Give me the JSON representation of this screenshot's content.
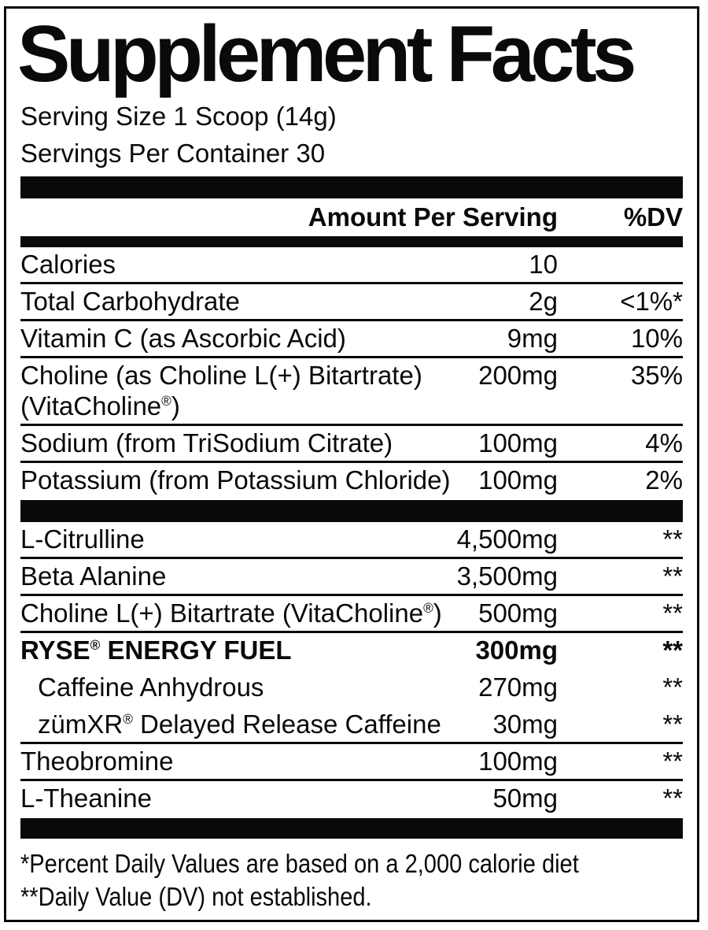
{
  "colors": {
    "ink": "#0a0a0a",
    "background": "#ffffff"
  },
  "label": {
    "title": "Supplement Facts",
    "serving_size": "Serving Size 1 Scoop (14g)",
    "servings_per_container": "Servings Per Container 30",
    "columns": {
      "amount": "Amount Per Serving",
      "dv": "%DV"
    },
    "rows": [
      {
        "name": "Calories",
        "amount": "10",
        "dv": "",
        "sep": true
      },
      {
        "name": "Total Carbohydrate",
        "amount": "2g",
        "dv": "<1%*",
        "sep": true
      },
      {
        "name": "Vitamin C (as Ascorbic Acid)",
        "amount": "9mg",
        "dv": "10%",
        "sep": true
      },
      {
        "name": "Choline (as Choline L(+) Bitartrate)(VitaCholine®)",
        "amount": "200mg",
        "dv": "35%",
        "sep": true
      },
      {
        "name": "Sodium (from TriSodium Citrate)",
        "amount": "100mg",
        "dv": "4%",
        "sep": true
      },
      {
        "name": "Potassium (from Potassium Chloride)",
        "amount": "100mg",
        "dv": "2%",
        "sep": false,
        "bar_after": "bar-thick-mid"
      },
      {
        "name": "L-Citrulline",
        "amount": "4,500mg",
        "dv": "**",
        "sep": true
      },
      {
        "name": "Beta Alanine",
        "amount": "3,500mg",
        "dv": "**",
        "sep": true
      },
      {
        "name": "Choline L(+) Bitartrate (VitaCholine®)",
        "amount": "500mg",
        "dv": "**",
        "sep": true
      },
      {
        "name": "RYSE® ENERGY FUEL",
        "amount": "300mg",
        "dv": "**",
        "sep": false,
        "bold": true
      },
      {
        "name": "Caffeine Anhydrous",
        "amount": "270mg",
        "dv": "**",
        "sep": false,
        "indent": true
      },
      {
        "name": "zümXR® Delayed Release Caffeine",
        "amount": "30mg",
        "dv": "**",
        "sep": true,
        "indent": true
      },
      {
        "name": "Theobromine",
        "amount": "100mg",
        "dv": "**",
        "sep": true
      },
      {
        "name": "L-Theanine",
        "amount": "50mg",
        "dv": "**",
        "sep": false,
        "bar_after": "bar-thick-bot"
      }
    ],
    "footnotes": [
      "*Percent Daily Values are based on a 2,000 calorie diet",
      "**Daily Value (DV) not established."
    ]
  }
}
